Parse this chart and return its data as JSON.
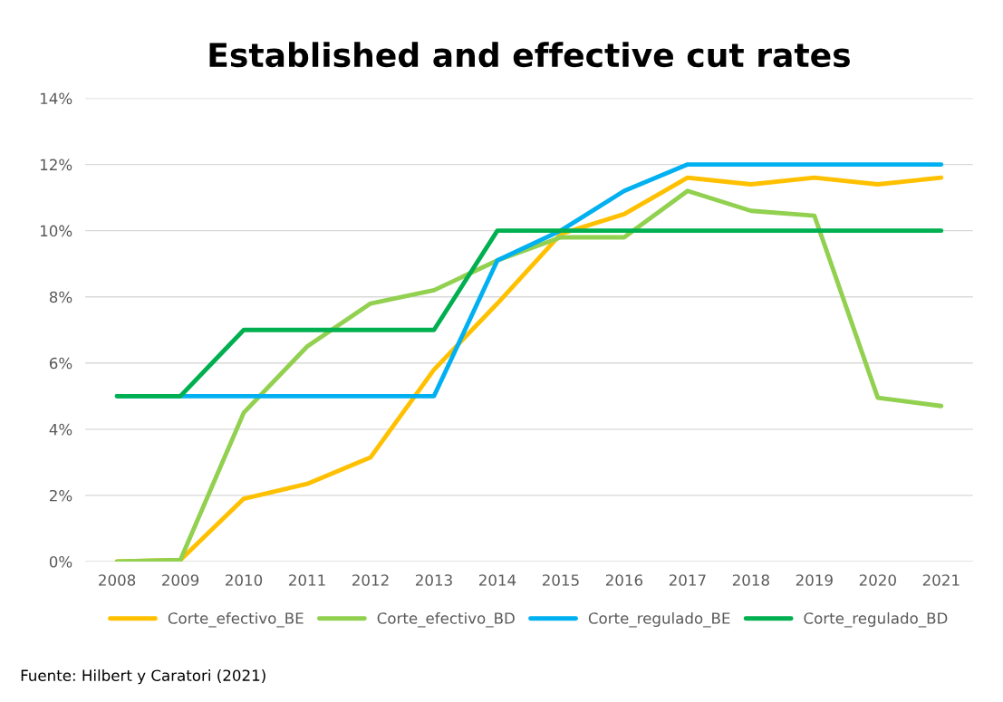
{
  "chart_data": {
    "type": "line",
    "title": "Established and effective cut rates",
    "categories": [
      "2008",
      "2009",
      "2010",
      "2011",
      "2012",
      "2013",
      "2014",
      "2015",
      "2016",
      "2017",
      "2018",
      "2019",
      "2020",
      "2021"
    ],
    "series": [
      {
        "name": "Corte_efectivo_BE",
        "color": "#ffc000",
        "values": [
          0,
          0.05,
          1.9,
          2.35,
          3.15,
          5.8,
          7.8,
          9.9,
          10.5,
          11.6,
          11.4,
          11.6,
          11.4,
          11.6
        ]
      },
      {
        "name": "Corte_efectivo_BD",
        "color": "#92d050",
        "values": [
          0,
          0.05,
          4.5,
          6.5,
          7.8,
          8.2,
          9.1,
          9.8,
          9.8,
          11.2,
          10.6,
          10.45,
          4.95,
          4.7
        ]
      },
      {
        "name": "Corte_regulado_BE",
        "color": "#00b0f0",
        "values": [
          5,
          5,
          5,
          5,
          5,
          5,
          9.1,
          10,
          11.2,
          12,
          12,
          12,
          12,
          12
        ]
      },
      {
        "name": "Corte_regulado_BD",
        "color": "#00b050",
        "values": [
          5,
          5,
          7,
          7,
          7,
          7,
          10,
          10,
          10,
          10,
          10,
          10,
          10,
          10
        ]
      }
    ],
    "ylim": [
      0,
      14
    ],
    "yticks": [
      {
        "value": 0,
        "label": "0%"
      },
      {
        "value": 2,
        "label": "2%"
      },
      {
        "value": 4,
        "label": "4%"
      },
      {
        "value": 6,
        "label": "6%"
      },
      {
        "value": 8,
        "label": "8%"
      },
      {
        "value": 10,
        "label": "10%"
      },
      {
        "value": 12,
        "label": "12%"
      },
      {
        "value": 14,
        "label": "14%"
      }
    ],
    "grid": "y",
    "legend": "bottom",
    "marker": "none",
    "line_style": "solid",
    "annotations": [
      "Fuente: Hilbert y Caratori (2021)"
    ]
  }
}
